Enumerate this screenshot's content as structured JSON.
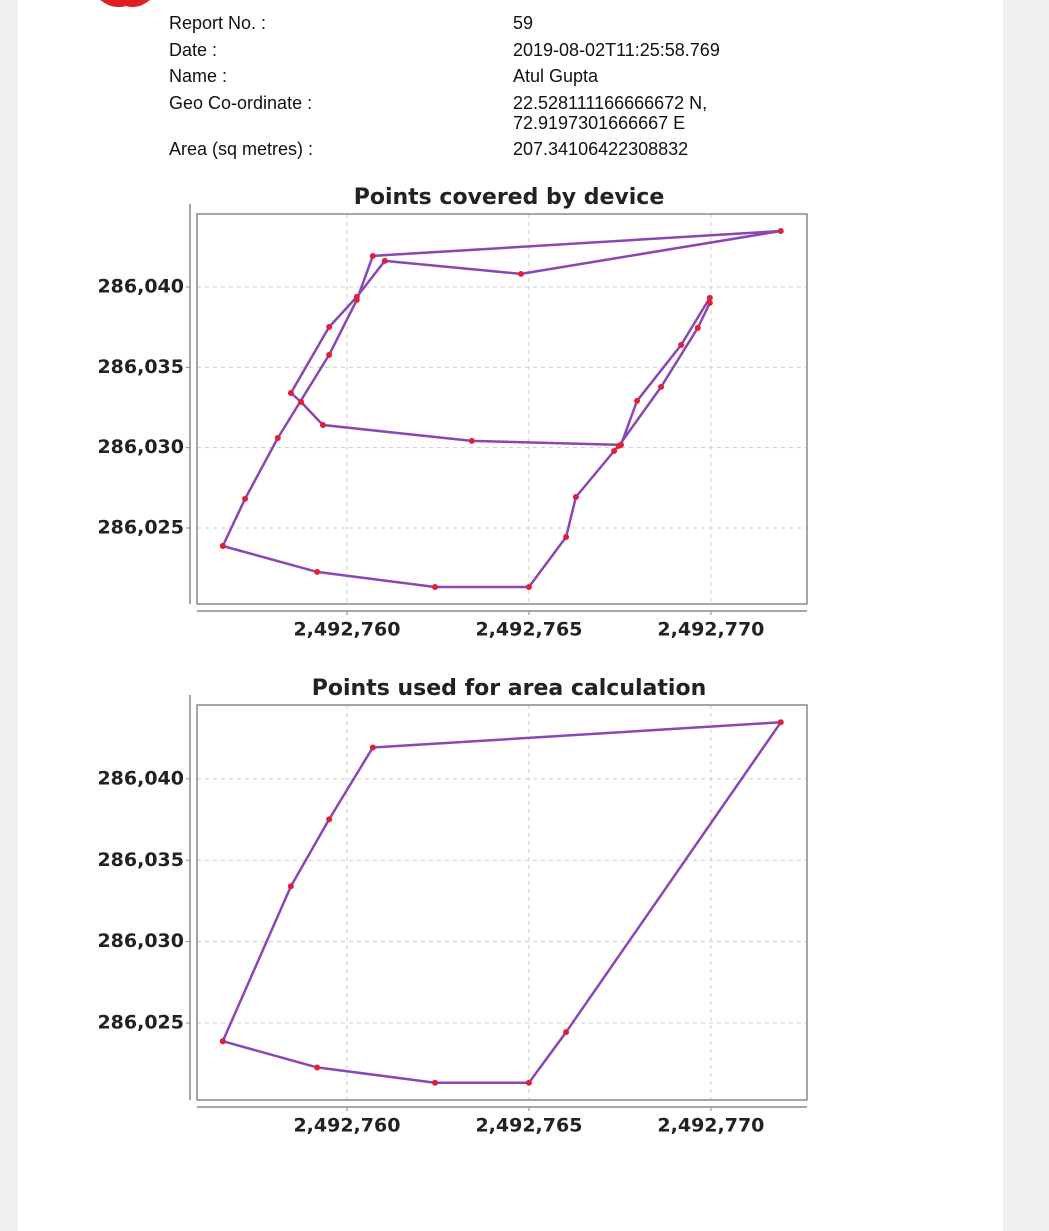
{
  "report": {
    "fields": [
      {
        "label": "Report No. :",
        "value": "59"
      },
      {
        "label": "Date :",
        "value": "2019-08-02T11:25:58.769"
      },
      {
        "label": "Name :",
        "value": "Atul Gupta"
      },
      {
        "label": "Geo Co-ordinate :",
        "value": [
          "22.528111166666672 N,",
          "72.9197301666667 E"
        ]
      },
      {
        "label": "Area (sq metres) :",
        "value": "207.34106422308832"
      }
    ]
  },
  "chart_data": [
    {
      "type": "line",
      "title": "Points covered by device",
      "color": "#8b45b5",
      "marker_color": "#e0203a",
      "grid": true,
      "x": [
        2492756.59,
        2492757.2,
        2492758.1,
        2492759.51,
        2492760.27,
        2492760.71,
        2492771.92,
        2492764.78,
        2492761.04,
        2492760.27,
        2492759.51,
        2492758.46,
        2492758.74,
        2492759.34,
        2492763.43,
        2492767.53,
        2492767.97,
        2492769.18,
        2492769.97,
        2492769.97,
        2492769.64,
        2492768.63,
        2492767.47,
        2492767.34,
        2492766.29,
        2492766.02,
        2492765.0,
        2492762.42,
        2492759.18,
        2492756.59
      ],
      "values": [
        286023.88,
        286026.81,
        286030.6,
        286035.77,
        286039.19,
        286041.93,
        286043.48,
        286040.81,
        286041.62,
        286039.38,
        286037.51,
        286033.4,
        286032.84,
        286031.41,
        286030.42,
        286030.17,
        286032.91,
        286036.39,
        286039.32,
        286039.01,
        286037.45,
        286033.78,
        286030.11,
        286029.79,
        286026.93,
        286024.44,
        286021.33,
        286021.33,
        286022.27,
        286023.88
      ],
      "xlim": [
        2492755.88,
        2492772.64
      ],
      "ylim": [
        286020.27,
        286044.54
      ],
      "xticks": [
        {
          "value": 2492760,
          "label": "2,492,760"
        },
        {
          "value": 2492765,
          "label": "2,492,765"
        },
        {
          "value": 2492770,
          "label": "2,492,770"
        }
      ],
      "yticks": [
        {
          "value": 286025,
          "label": "286,025"
        },
        {
          "value": 286030,
          "label": "286,030"
        },
        {
          "value": 286035,
          "label": "286,035"
        },
        {
          "value": 286040,
          "label": "286,040"
        }
      ]
    },
    {
      "type": "line",
      "title": "Points used for area calculation",
      "color": "#8b45b5",
      "marker_color": "#e0203a",
      "grid": true,
      "x": [
        2492756.59,
        2492758.46,
        2492759.51,
        2492760.71,
        2492771.92,
        2492766.02,
        2492765.0,
        2492762.42,
        2492759.18,
        2492756.59
      ],
      "values": [
        286023.88,
        286033.4,
        286037.51,
        286041.93,
        286043.48,
        286024.44,
        286021.33,
        286021.33,
        286022.27,
        286023.88
      ],
      "xlim": [
        2492755.88,
        2492772.64
      ],
      "ylim": [
        286020.27,
        286044.54
      ],
      "xticks": [
        {
          "value": 2492760,
          "label": "2,492,760"
        },
        {
          "value": 2492765,
          "label": "2,492,765"
        },
        {
          "value": 2492770,
          "label": "2,492,770"
        }
      ],
      "yticks": [
        {
          "value": 286025,
          "label": "286,025"
        },
        {
          "value": 286030,
          "label": "286,030"
        },
        {
          "value": 286035,
          "label": "286,035"
        },
        {
          "value": 286040,
          "label": "286,040"
        }
      ]
    }
  ]
}
